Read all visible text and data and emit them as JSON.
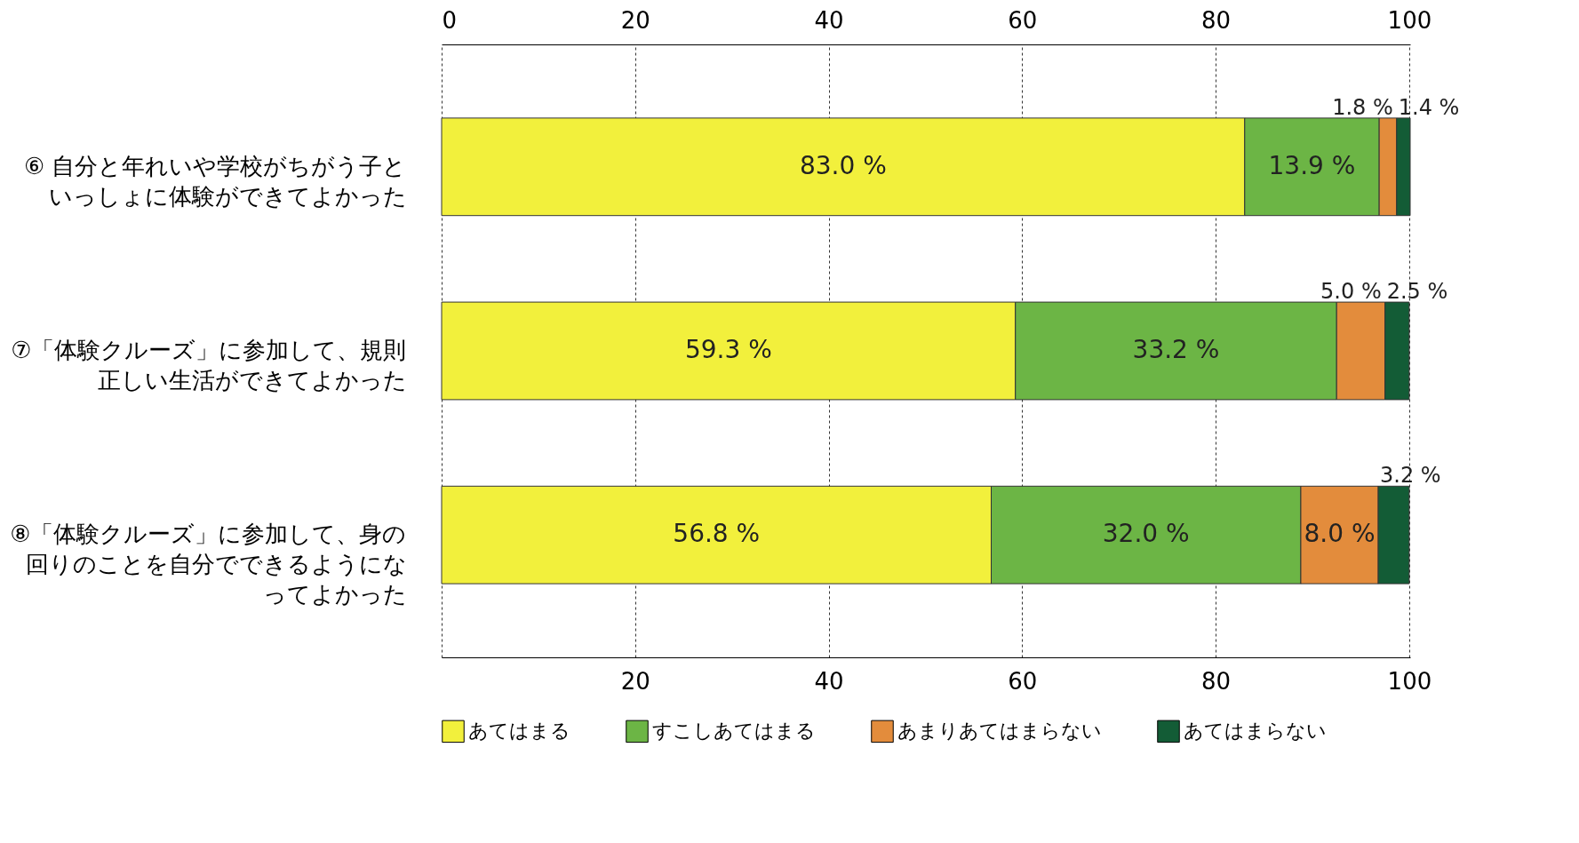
{
  "chart_data": {
    "type": "bar",
    "orientation": "horizontal",
    "stacked": true,
    "categories": [
      "⑥ 自分と年れいや学校がちがう子といっしょに体験ができてよかった",
      "⑦「体験クルーズ」に参加して、規則正しい生活ができてよかった",
      "⑧「体験クルーズ」に参加して、身の回りのことを自分でできるようになってよかった"
    ],
    "series": [
      {
        "name": "あてはまる",
        "color": "#f2f03c",
        "values": [
          83.0,
          59.3,
          56.8
        ],
        "value_labels": [
          "83.0 %",
          "59.3 %",
          "56.8 %"
        ]
      },
      {
        "name": "すこしあてはまる",
        "color": "#6cb545",
        "values": [
          13.9,
          33.2,
          32.0
        ],
        "value_labels": [
          "13.9 %",
          "33.2 %",
          "32.0 %"
        ]
      },
      {
        "name": "あまりあてはまらない",
        "color": "#e38c3c",
        "values": [
          1.8,
          5.0,
          8.0
        ],
        "value_labels": [
          "1.8 %",
          "5.0 %",
          "8.0 %"
        ]
      },
      {
        "name": "あてはまらない",
        "color": "#135c36",
        "values": [
          1.4,
          2.5,
          3.2
        ],
        "value_labels": [
          "1.4 %",
          "2.5 %",
          "3.2 %"
        ]
      }
    ],
    "xlim": [
      0,
      100.1
    ],
    "xticks": [
      {
        "value": 0,
        "label": null
      },
      20,
      40,
      60,
      80,
      100
    ],
    "x2lim": [
      0,
      100.1
    ],
    "x2ticks": [
      0,
      20,
      40,
      60,
      80,
      100
    ],
    "grid": "x",
    "legend": "bottom"
  }
}
